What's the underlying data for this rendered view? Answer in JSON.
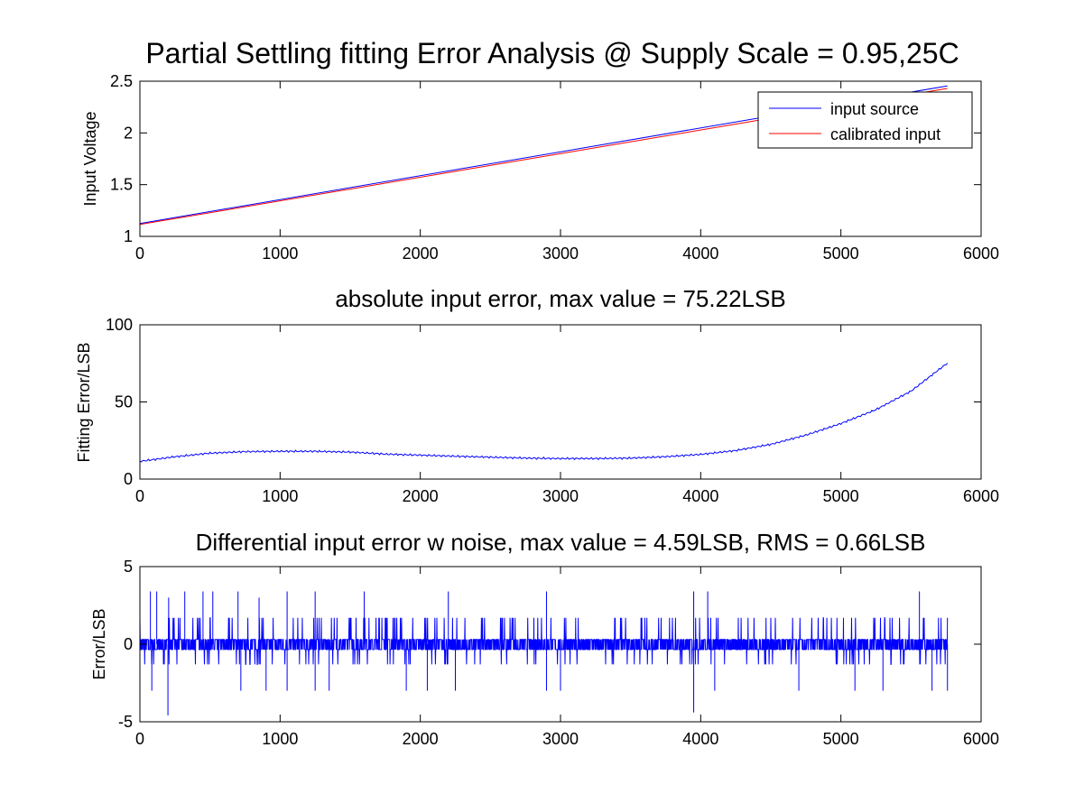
{
  "figure_title": "Partial Settling fitting Error Analysis @ Supply Scale = 0.95,25C",
  "colors": {
    "blue": "#0000ff",
    "red": "#ff0000",
    "axis": "#000000"
  },
  "chart_data": [
    {
      "id": "voltage",
      "type": "line",
      "title": "",
      "xlabel": "",
      "ylabel": "Input Voltage",
      "xlim": [
        0,
        6000
      ],
      "ylim": [
        1,
        2.5
      ],
      "xticks": [
        "0",
        "1000",
        "2000",
        "3000",
        "4000",
        "5000",
        "6000"
      ],
      "yticks": [
        "1",
        "1.5",
        "2",
        "2.5"
      ],
      "legend": {
        "position": "top-right",
        "entries": [
          "input source",
          "calibrated input"
        ]
      },
      "series": [
        {
          "name": "input source",
          "color": "#0000ff",
          "x": [
            0,
            5760
          ],
          "y": [
            1.125,
            2.455
          ]
        },
        {
          "name": "calibrated input",
          "color": "#ff0000",
          "x": [
            0,
            5760
          ],
          "y": [
            1.115,
            2.43
          ]
        }
      ]
    },
    {
      "id": "abs_error",
      "type": "line",
      "title": "absolute input error, max value = 75.22LSB",
      "xlabel": "",
      "ylabel": "Fitting Error/LSB",
      "xlim": [
        0,
        6000
      ],
      "ylim": [
        0,
        100
      ],
      "xticks": [
        "0",
        "1000",
        "2000",
        "3000",
        "4000",
        "5000",
        "6000"
      ],
      "yticks": [
        "0",
        "50",
        "100"
      ],
      "series": [
        {
          "color": "#0000ff",
          "x": [
            0,
            250,
            500,
            750,
            1000,
            1250,
            1500,
            1750,
            2000,
            2250,
            2500,
            2750,
            3000,
            3250,
            3500,
            3750,
            4000,
            4250,
            4500,
            4750,
            5000,
            5250,
            5500,
            5760
          ],
          "y": [
            11.5,
            14.5,
            16.8,
            17.8,
            18.0,
            18.0,
            17.5,
            16.2,
            15.5,
            14.8,
            14.2,
            13.6,
            13.3,
            13.3,
            13.6,
            14.5,
            16.0,
            18.5,
            22.5,
            28.5,
            36.0,
            45.0,
            57.0,
            75.22
          ]
        }
      ]
    },
    {
      "id": "diff_error",
      "type": "line",
      "title": "Differential input error w noise, max value = 4.59LSB, RMS = 0.66LSB",
      "xlabel": "",
      "ylabel": "Error/LSB",
      "xlim": [
        0,
        6000
      ],
      "ylim": [
        -5,
        5
      ],
      "xticks": [
        "0",
        "1000",
        "2000",
        "3000",
        "4000",
        "5000",
        "6000"
      ],
      "yticks": [
        "-5",
        "0",
        "5"
      ],
      "max_value": 4.59,
      "rms": 0.66,
      "series": [
        {
          "color": "#0000ff",
          "n_points": 5760,
          "levels": [
            -1.3,
            -0.35,
            0.3,
            1.7
          ],
          "positive_spikes_x": [
            75,
            120,
            205,
            320,
            450,
            520,
            700,
            850,
            1050,
            1250,
            1600,
            2200,
            2900,
            3950,
            4050,
            5560
          ],
          "positive_spikes_y": [
            3.4,
            3.4,
            3.0,
            3.4,
            3.4,
            3.4,
            3.4,
            3.0,
            3.4,
            3.4,
            3.4,
            3.4,
            3.4,
            3.4,
            3.4,
            3.4
          ],
          "negative_spikes_x": [
            85,
            200,
            720,
            900,
            1050,
            1250,
            1350,
            1900,
            2050,
            2250,
            2900,
            3000,
            3950,
            4100,
            4700,
            5100,
            5300,
            5650,
            5760
          ],
          "negative_spikes_y": [
            -3.0,
            -4.59,
            -3.0,
            -3.0,
            -3.0,
            -3.0,
            -3.0,
            -3.0,
            -3.0,
            -3.0,
            -3.0,
            -3.0,
            -4.4,
            -3.0,
            -3.0,
            -3.0,
            -3.0,
            -3.0,
            -3.0
          ]
        }
      ]
    }
  ]
}
